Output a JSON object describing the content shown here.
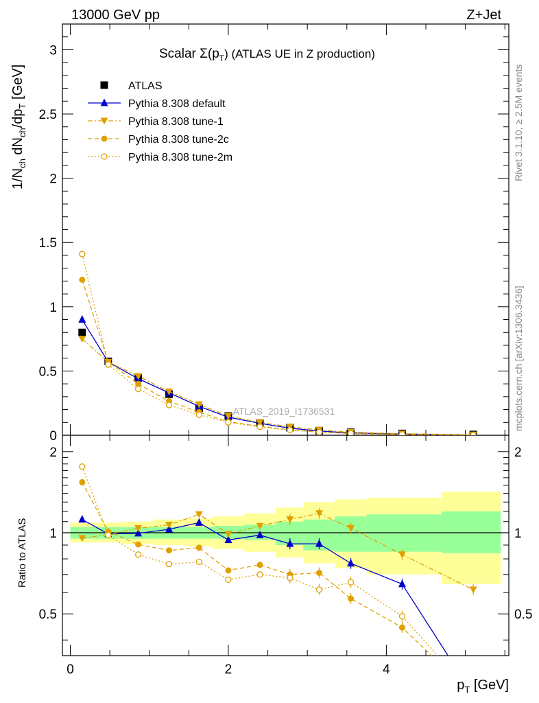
{
  "header": {
    "left": "13000 GeV pp",
    "right": "Z+Jet"
  },
  "title": {
    "main": "Scalar Σ(p",
    "sub": "T",
    "tail": ") (ATLAS UE in Z production)"
  },
  "side_labels": {
    "rivet": "Rivet 3.1.10, ≥ 2.5M events",
    "mcplots": "mcplots.cern.ch [arXiv:1306.3436]"
  },
  "watermark": "ATLAS_2019_I1736531",
  "axes": {
    "ylabel_top": "1/N_ch dN_ch/dp_T [GeV]",
    "ylabel_bottom": "Ratio to ATLAS",
    "xlabel": "p_T [GeV]",
    "top_yticks": [
      "0",
      "0.5",
      "1",
      "1.5",
      "2",
      "2.5",
      "3"
    ],
    "bottom_yticks": [
      "0.5",
      "1",
      "2"
    ],
    "xticks": [
      "0",
      "2",
      "4"
    ]
  },
  "colors": {
    "atlas": "#000000",
    "default": "#0000cc",
    "tunes": "#e0a000",
    "band_inner": "#99ff99",
    "band_outer": "#ffff99"
  },
  "chart_data": {
    "type": "line",
    "xlim": [
      -0.1,
      5.55
    ],
    "ylim_top": [
      0,
      3.2
    ],
    "ylim_ratio": [
      0.35,
      2.3
    ],
    "bins": [
      [
        0.0,
        0.3
      ],
      [
        0.3,
        0.65
      ],
      [
        0.65,
        1.05
      ],
      [
        1.05,
        1.45
      ],
      [
        1.45,
        1.8
      ],
      [
        1.8,
        2.2
      ],
      [
        2.2,
        2.6
      ],
      [
        2.6,
        2.95
      ],
      [
        2.95,
        3.35
      ],
      [
        3.35,
        3.75
      ],
      [
        3.75,
        4.7
      ],
      [
        4.7,
        5.45
      ]
    ],
    "x": [
      0.15,
      0.48,
      0.86,
      1.25,
      1.63,
      2.0,
      2.4,
      2.78,
      3.15,
      3.55,
      4.2,
      5.1
    ],
    "legend": [
      "ATLAS",
      "Pythia 8.308 default",
      "Pythia 8.308 tune-1",
      "Pythia 8.308 tune-2c",
      "Pythia 8.308 tune-2m"
    ],
    "series": [
      {
        "name": "ATLAS",
        "marker": "square",
        "line": "none",
        "values": [
          0.8,
          0.575,
          0.445,
          0.32,
          0.21,
          0.15,
          0.095,
          0.06,
          0.036,
          0.023,
          0.014,
          0.006
        ],
        "ratio": [
          1,
          1,
          1,
          1,
          1,
          1,
          1,
          1,
          1,
          1,
          1,
          1
        ]
      },
      {
        "name": "Pythia 8.308 default",
        "marker": "triangle-up",
        "line": "solid",
        "values": [
          0.9,
          0.57,
          0.44,
          0.33,
          0.225,
          0.14,
          0.093,
          0.055,
          0.033,
          0.018,
          0.009,
          0.002
        ],
        "ratio": [
          1.12,
          0.99,
          0.995,
          1.03,
          1.09,
          0.94,
          0.98,
          0.91,
          0.91,
          0.77,
          0.645,
          0.25
        ]
      },
      {
        "name": "Pythia 8.308 tune-1",
        "marker": "triangle-down",
        "line": "dashdot",
        "values": [
          0.75,
          0.57,
          0.46,
          0.34,
          0.24,
          0.15,
          0.1,
          0.066,
          0.042,
          0.024,
          0.012,
          0.004
        ],
        "ratio": [
          0.955,
          0.985,
          1.04,
          1.07,
          1.17,
          0.99,
          1.06,
          1.12,
          1.18,
          1.04,
          0.83,
          0.615
        ]
      },
      {
        "name": "Pythia 8.308 tune-2c",
        "marker": "circle",
        "line": "dashed",
        "values": [
          1.21,
          0.57,
          0.4,
          0.265,
          0.18,
          0.105,
          0.07,
          0.042,
          0.026,
          0.013,
          0.006,
          0.001
        ],
        "ratio": [
          1.54,
          1.01,
          0.905,
          0.86,
          0.88,
          0.725,
          0.76,
          0.7,
          0.71,
          0.57,
          0.445,
          0.25
        ]
      },
      {
        "name": "Pythia 8.308 tune-2m",
        "marker": "circle-open",
        "line": "dotted",
        "values": [
          1.41,
          0.55,
          0.36,
          0.235,
          0.16,
          0.1,
          0.065,
          0.041,
          0.024,
          0.015,
          0.007,
          0.001
        ],
        "ratio": [
          1.76,
          0.98,
          0.83,
          0.765,
          0.78,
          0.67,
          0.7,
          0.68,
          0.615,
          0.655,
          0.49,
          0.25
        ]
      }
    ],
    "ratio_band": {
      "inner_lo": [
        0.95,
        0.95,
        0.95,
        0.95,
        0.95,
        0.95,
        0.94,
        0.9,
        0.86,
        0.85,
        0.85,
        0.84
      ],
      "inner_hi": [
        1.05,
        1.05,
        1.05,
        1.05,
        1.05,
        1.06,
        1.07,
        1.1,
        1.12,
        1.15,
        1.17,
        1.2
      ],
      "outer_lo": [
        0.92,
        0.92,
        0.91,
        0.9,
        0.89,
        0.87,
        0.85,
        0.81,
        0.77,
        0.74,
        0.7,
        0.645
      ],
      "outer_hi": [
        1.09,
        1.09,
        1.1,
        1.12,
        1.13,
        1.15,
        1.18,
        1.24,
        1.3,
        1.33,
        1.35,
        1.42
      ]
    },
    "grid": false,
    "legend_position": "top-left"
  }
}
